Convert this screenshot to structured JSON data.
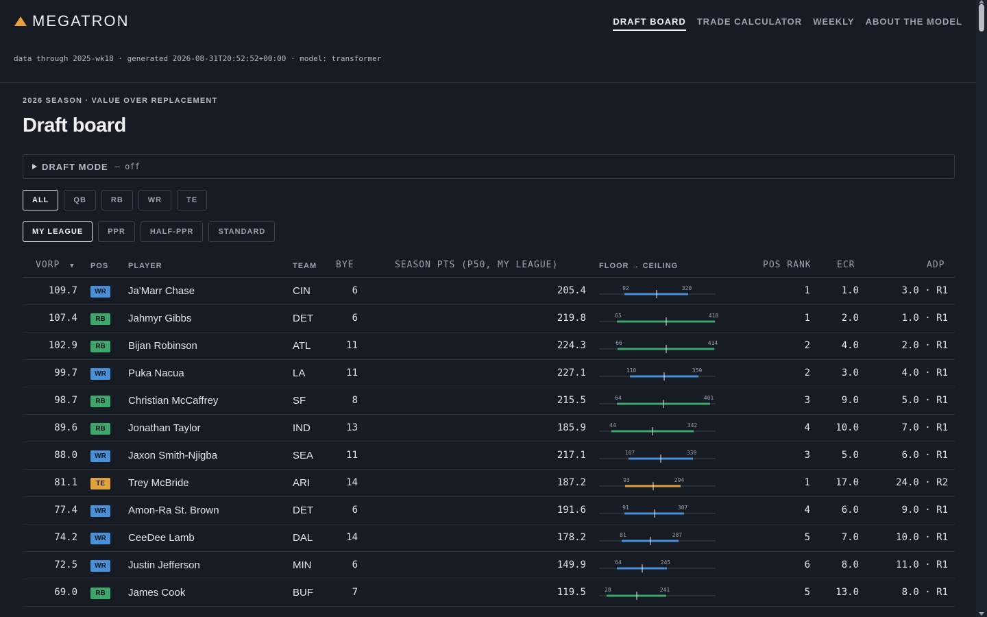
{
  "header": {
    "logo_text": "MEGATRON",
    "nav": [
      {
        "label": "DRAFT BOARD",
        "active": true
      },
      {
        "label": "TRADE CALCULATOR",
        "active": false
      },
      {
        "label": "WEEKLY",
        "active": false
      },
      {
        "label": "ABOUT THE MODEL",
        "active": false
      }
    ],
    "meta": "data through 2025-wk18 · generated 2026-08-31T20:52:52+00:00 · model: transformer"
  },
  "page": {
    "eyebrow": "2026 SEASON · VALUE OVER REPLACEMENT",
    "title": "Draft board",
    "draft_mode_label": "DRAFT MODE",
    "draft_mode_state": "— off"
  },
  "filters": {
    "positions": [
      "ALL",
      "QB",
      "RB",
      "WR",
      "TE"
    ],
    "positions_active": "ALL",
    "formats": [
      "MY LEAGUE",
      "PPR",
      "HALF-PPR",
      "STANDARD"
    ],
    "formats_active": "MY LEAGUE"
  },
  "colors": {
    "WR": "#4a90d9",
    "RB": "#3fa66b",
    "TE": "#e0a23c",
    "accent": "#e8a33a"
  },
  "table": {
    "columns": {
      "vorp": "VORP",
      "sort_indicator": "▼",
      "pos": "POS",
      "player": "PLAYER",
      "team": "TEAM",
      "bye": "BYE",
      "season_pts": "SEASON PTS (P50, MY LEAGUE)",
      "floor_ceiling": "FLOOR → CEILING",
      "pos_rank": "POS RANK",
      "ecr": "ECR",
      "adp": "ADP"
    },
    "rows": [
      {
        "vorp": "109.7",
        "pos": "WR",
        "player": "Ja'Marr Chase",
        "team": "CIN",
        "bye": "6",
        "pts": "205.4",
        "floor": 92,
        "ceiling": 320,
        "pos_rank": "1",
        "ecr": "1.0",
        "adp": "3.0 · R1"
      },
      {
        "vorp": "107.4",
        "pos": "RB",
        "player": "Jahmyr Gibbs",
        "team": "DET",
        "bye": "6",
        "pts": "219.8",
        "floor": 65,
        "ceiling": 418,
        "pos_rank": "1",
        "ecr": "2.0",
        "adp": "1.0 · R1"
      },
      {
        "vorp": "102.9",
        "pos": "RB",
        "player": "Bijan Robinson",
        "team": "ATL",
        "bye": "11",
        "pts": "224.3",
        "floor": 66,
        "ceiling": 414,
        "pos_rank": "2",
        "ecr": "4.0",
        "adp": "2.0 · R1"
      },
      {
        "vorp": "99.7",
        "pos": "WR",
        "player": "Puka Nacua",
        "team": "LA",
        "bye": "11",
        "pts": "227.1",
        "floor": 110,
        "ceiling": 359,
        "pos_rank": "2",
        "ecr": "3.0",
        "adp": "4.0 · R1"
      },
      {
        "vorp": "98.7",
        "pos": "RB",
        "player": "Christian McCaffrey",
        "team": "SF",
        "bye": "8",
        "pts": "215.5",
        "floor": 64,
        "ceiling": 401,
        "pos_rank": "3",
        "ecr": "9.0",
        "adp": "5.0 · R1"
      },
      {
        "vorp": "89.6",
        "pos": "RB",
        "player": "Jonathan Taylor",
        "team": "IND",
        "bye": "13",
        "pts": "185.9",
        "floor": 44,
        "ceiling": 342,
        "pos_rank": "4",
        "ecr": "10.0",
        "adp": "7.0 · R1"
      },
      {
        "vorp": "88.0",
        "pos": "WR",
        "player": "Jaxon Smith-Njigba",
        "team": "SEA",
        "bye": "11",
        "pts": "217.1",
        "floor": 107,
        "ceiling": 339,
        "pos_rank": "3",
        "ecr": "5.0",
        "adp": "6.0 · R1"
      },
      {
        "vorp": "81.1",
        "pos": "TE",
        "player": "Trey McBride",
        "team": "ARI",
        "bye": "14",
        "pts": "187.2",
        "floor": 93,
        "ceiling": 294,
        "pos_rank": "1",
        "ecr": "17.0",
        "adp": "24.0 · R2"
      },
      {
        "vorp": "77.4",
        "pos": "WR",
        "player": "Amon-Ra St. Brown",
        "team": "DET",
        "bye": "6",
        "pts": "191.6",
        "floor": 91,
        "ceiling": 307,
        "pos_rank": "4",
        "ecr": "6.0",
        "adp": "9.0 · R1"
      },
      {
        "vorp": "74.2",
        "pos": "WR",
        "player": "CeeDee Lamb",
        "team": "DAL",
        "bye": "14",
        "pts": "178.2",
        "floor": 81,
        "ceiling": 287,
        "pos_rank": "5",
        "ecr": "7.0",
        "adp": "10.0 · R1"
      },
      {
        "vorp": "72.5",
        "pos": "WR",
        "player": "Justin Jefferson",
        "team": "MIN",
        "bye": "6",
        "pts": "149.9",
        "floor": 64,
        "ceiling": 245,
        "pos_rank": "6",
        "ecr": "8.0",
        "adp": "11.0 · R1"
      },
      {
        "vorp": "69.0",
        "pos": "RB",
        "player": "James Cook",
        "team": "BUF",
        "bye": "7",
        "pts": "119.5",
        "floor": 28,
        "ceiling": 241,
        "pos_rank": "5",
        "ecr": "13.0",
        "adp": "8.0 · R1"
      }
    ]
  }
}
